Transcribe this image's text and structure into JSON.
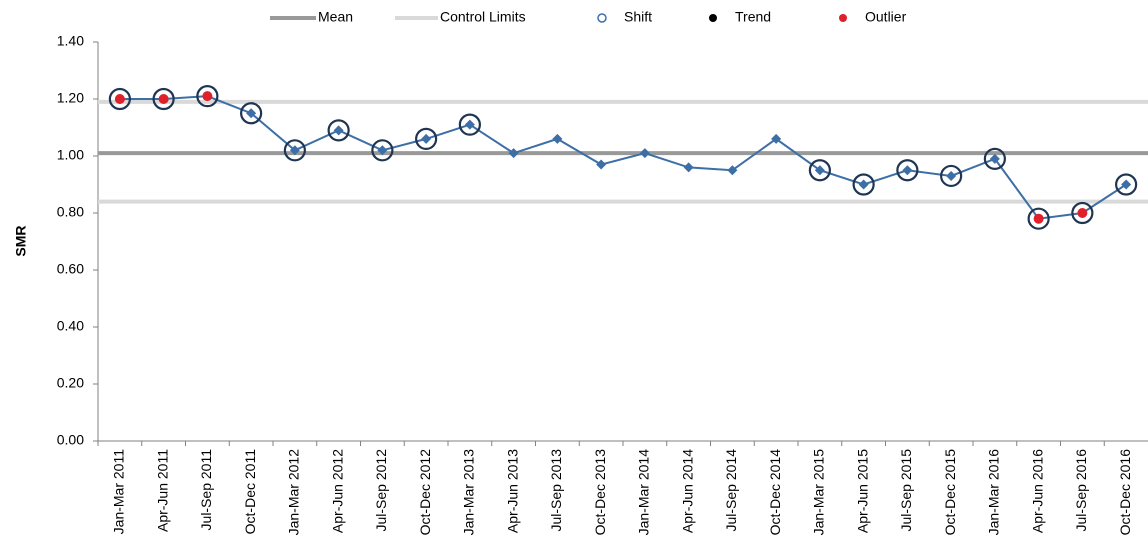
{
  "chart_data": {
    "type": "line",
    "ylabel": "SMR",
    "categories": [
      "Jan-Mar 2011",
      "Apr-Jun 2011",
      "Jul-Sep 2011",
      "Oct-Dec 2011",
      "Jan-Mar 2012",
      "Apr-Jun 2012",
      "Jul-Sep 2012",
      "Oct-Dec 2012",
      "Jan-Mar 2013",
      "Apr-Jun 2013",
      "Jul-Sep 2013",
      "Oct-Dec 2013",
      "Jan-Mar 2014",
      "Apr-Jun 2014",
      "Jul-Sep 2014",
      "Oct-Dec 2014",
      "Jan-Mar 2015",
      "Apr-Jun 2015",
      "Jul-Sep 2015",
      "Oct-Dec 2015",
      "Jan-Mar 2016",
      "Apr-Jun 2016",
      "Jul-Sep 2016",
      "Oct-Dec 2016"
    ],
    "values": [
      1.2,
      1.2,
      1.21,
      1.15,
      1.02,
      1.09,
      1.02,
      1.06,
      1.11,
      1.01,
      1.06,
      0.97,
      1.01,
      0.96,
      0.95,
      1.06,
      0.95,
      0.9,
      0.95,
      0.93,
      0.99,
      0.78,
      0.8,
      0.9
    ],
    "color": "#3d6fa6",
    "reference_lines": [
      {
        "name": "Mean",
        "color": "#999999",
        "values": [
          1.01
        ]
      },
      {
        "name": "Control Limits",
        "color": "#d9d9d9",
        "values": [
          0.84,
          1.19
        ]
      }
    ],
    "series": [
      {
        "name": "Shift",
        "color": "#1f3552",
        "values": [
          1.2,
          1.2,
          1.21,
          1.15,
          1.02,
          1.09,
          1.02,
          1.06,
          1.11,
          null,
          null,
          null,
          null,
          null,
          null,
          null,
          0.95,
          0.9,
          0.95,
          0.93,
          0.99,
          0.78,
          0.8,
          0.9
        ]
      },
      {
        "name": "Trend",
        "color": "#000000",
        "values": [
          null,
          null,
          null,
          null,
          null,
          null,
          null,
          null,
          null,
          null,
          null,
          null,
          null,
          null,
          null,
          null,
          null,
          null,
          null,
          null,
          null,
          null,
          null,
          null
        ]
      },
      {
        "name": "Outlier",
        "color": "#e0202a",
        "values": [
          1.2,
          1.2,
          1.21,
          null,
          null,
          null,
          null,
          null,
          null,
          null,
          null,
          null,
          null,
          null,
          null,
          null,
          null,
          null,
          null,
          null,
          null,
          0.78,
          0.8,
          null
        ]
      }
    ],
    "ylim": [
      0,
      1.4
    ],
    "yticks": [
      {
        "value": 0,
        "label": "0.00"
      },
      {
        "value": 0.2,
        "label": "0.20"
      },
      {
        "value": 0.4,
        "label": "0.40"
      },
      {
        "value": 0.6,
        "label": "0.60"
      },
      {
        "value": 0.8,
        "label": "0.80"
      },
      {
        "value": 1,
        "label": "1.00"
      },
      {
        "value": 1.2,
        "label": "1.20"
      },
      {
        "value": 1.4,
        "label": "1.40"
      }
    ]
  }
}
